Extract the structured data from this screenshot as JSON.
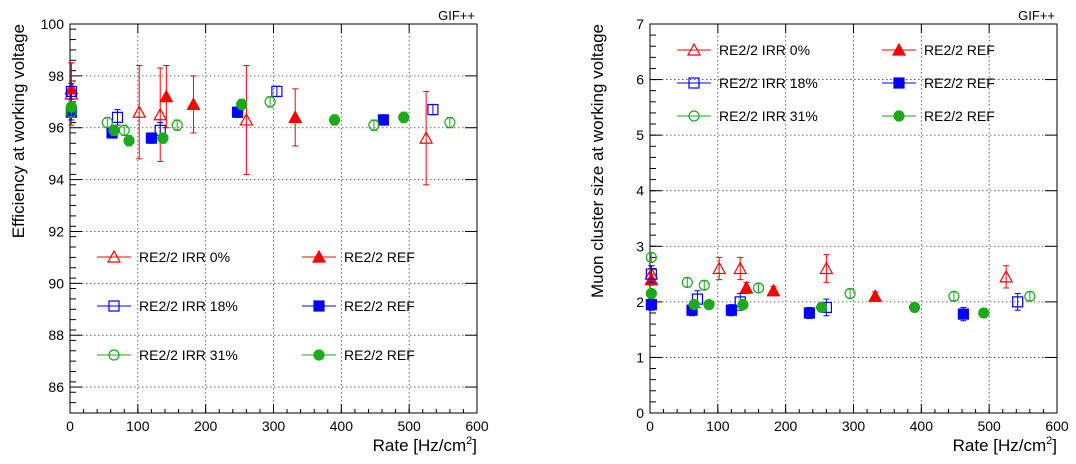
{
  "chart_data": [
    {
      "type": "scatter",
      "corner_label": "GIF++",
      "xlabel_main": "Rate [Hz/cm",
      "xlabel_sup": "2",
      "xlabel_end": "]",
      "ylabel": "Efficiency at working voltage",
      "xlim": [
        0,
        600
      ],
      "ylim": [
        85,
        100
      ],
      "xticks": [
        0,
        100,
        200,
        300,
        400,
        500,
        600
      ],
      "yticks": [
        86,
        88,
        90,
        92,
        94,
        96,
        98,
        100
      ],
      "grid": true,
      "legend_position": "bottom",
      "series": [
        {
          "name": "RE2/2 IRR 0%",
          "color": "#ff0000",
          "marker": "triangle-open",
          "points": [
            [
              2,
              97.3,
              1.2
            ],
            [
              102,
              96.6,
              1.8
            ],
            [
              133,
              96.5,
              1.8
            ],
            [
              260,
              96.3,
              2.1
            ],
            [
              525,
              95.6,
              1.8
            ]
          ]
        },
        {
          "name": "RE2/2 REF",
          "color": "#ff0000",
          "marker": "triangle-filled",
          "points": [
            [
              2,
              97.5,
              1.0
            ],
            [
              142,
              97.2,
              1.2
            ],
            [
              182,
              96.9,
              1.1
            ],
            [
              332,
              96.4,
              1.1
            ]
          ]
        },
        {
          "name": "RE2/2 IRR 18%",
          "color": "#0000ff",
          "marker": "square-open",
          "points": [
            [
              2,
              97.4,
              0.3
            ],
            [
              70,
              96.4,
              0.3
            ],
            [
              133,
              95.9,
              0.3
            ],
            [
              305,
              97.4,
              0.2
            ],
            [
              535,
              96.7,
              0.2
            ]
          ]
        },
        {
          "name": "RE2/2 REF",
          "color": "#0000ff",
          "marker": "square-filled",
          "points": [
            [
              2,
              96.6,
              0.3
            ],
            [
              62,
              95.8,
              0.2
            ],
            [
              120,
              95.6,
              0.2
            ],
            [
              247,
              96.6,
              0.2
            ],
            [
              462,
              96.3,
              0.2
            ]
          ]
        },
        {
          "name": "RE2/2 IRR 31%",
          "color": "#1aaa1a",
          "marker": "circle-open",
          "points": [
            [
              2,
              96.6,
              0.2
            ],
            [
              55,
              96.2,
              0.2
            ],
            [
              80,
              95.9,
              0.2
            ],
            [
              158,
              96.1,
              0.2
            ],
            [
              295,
              97.0,
              0.2
            ],
            [
              448,
              96.1,
              0.2
            ],
            [
              560,
              96.2,
              0.2
            ]
          ]
        },
        {
          "name": "RE2/2 REF",
          "color": "#1aaa1a",
          "marker": "circle-filled",
          "points": [
            [
              2,
              96.8,
              0.2
            ],
            [
              65,
              95.9,
              0.2
            ],
            [
              87,
              95.5,
              0.2
            ],
            [
              137,
              95.6,
              0.2
            ],
            [
              253,
              96.9,
              0.2
            ],
            [
              390,
              96.3,
              0.2
            ],
            [
              492,
              96.4,
              0.2
            ]
          ]
        }
      ]
    },
    {
      "type": "scatter",
      "corner_label": "GIF++",
      "xlabel_main": "Rate [Hz/cm",
      "xlabel_sup": "2",
      "xlabel_end": "]",
      "ylabel": "Muon cluster size at working voltage",
      "xlim": [
        0,
        600
      ],
      "ylim": [
        0,
        7
      ],
      "xticks": [
        0,
        100,
        200,
        300,
        400,
        500,
        600
      ],
      "yticks": [
        0,
        1,
        2,
        3,
        4,
        5,
        6,
        7
      ],
      "grid": true,
      "legend_position": "top",
      "series": [
        {
          "name": "RE2/2 IRR 0%",
          "color": "#ff0000",
          "marker": "triangle-open",
          "points": [
            [
              2,
              2.5,
              0.15
            ],
            [
              102,
              2.6,
              0.2
            ],
            [
              133,
              2.6,
              0.2
            ],
            [
              260,
              2.6,
              0.25
            ],
            [
              525,
              2.45,
              0.2
            ]
          ]
        },
        {
          "name": "RE2/2 REF",
          "color": "#ff0000",
          "marker": "triangle-filled",
          "points": [
            [
              2,
              2.4,
              0.1
            ],
            [
              142,
              2.25,
              0.1
            ],
            [
              182,
              2.2,
              0.08
            ],
            [
              332,
              2.1,
              0.08
            ]
          ]
        },
        {
          "name": "RE2/2 IRR 18%",
          "color": "#0000ff",
          "marker": "square-open",
          "points": [
            [
              2,
              2.5,
              0.15
            ],
            [
              70,
              2.05,
              0.15
            ],
            [
              133,
              2.0,
              0.15
            ],
            [
              260,
              1.9,
              0.15
            ],
            [
              542,
              2.0,
              0.15
            ]
          ]
        },
        {
          "name": "RE2/2 REF",
          "color": "#0000ff",
          "marker": "square-filled",
          "points": [
            [
              2,
              1.95,
              0.1
            ],
            [
              62,
              1.85,
              0.1
            ],
            [
              120,
              1.85,
              0.1
            ],
            [
              235,
              1.8,
              0.1
            ],
            [
              462,
              1.78,
              0.12
            ]
          ]
        },
        {
          "name": "RE2/2 IRR 31%",
          "color": "#1aaa1a",
          "marker": "circle-open",
          "points": [
            [
              2,
              2.8,
              0.08
            ],
            [
              55,
              2.35,
              0.08
            ],
            [
              80,
              2.3,
              0.08
            ],
            [
              160,
              2.25,
              0.08
            ],
            [
              295,
              2.15,
              0.08
            ],
            [
              448,
              2.1,
              0.08
            ],
            [
              560,
              2.1,
              0.08
            ]
          ]
        },
        {
          "name": "RE2/2 REF",
          "color": "#1aaa1a",
          "marker": "circle-filled",
          "points": [
            [
              2,
              2.15,
              0.08
            ],
            [
              65,
              1.95,
              0.08
            ],
            [
              87,
              1.95,
              0.08
            ],
            [
              137,
              1.95,
              0.08
            ],
            [
              253,
              1.9,
              0.08
            ],
            [
              390,
              1.9,
              0.08
            ],
            [
              492,
              1.8,
              0.08
            ]
          ]
        }
      ]
    }
  ]
}
